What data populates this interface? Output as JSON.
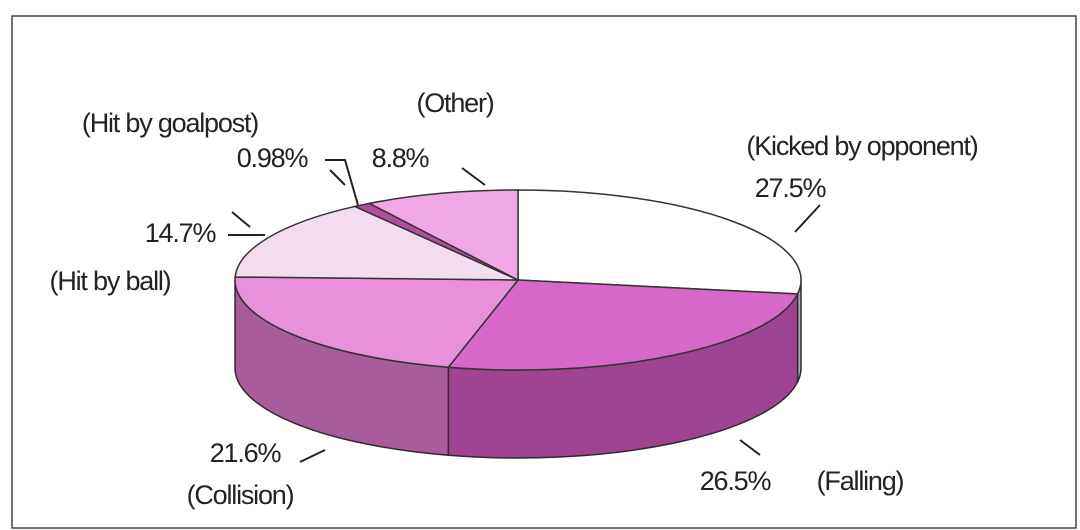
{
  "chart_data": {
    "type": "pie3d",
    "categories": [
      "(Kicked by opponent)",
      "(Falling)",
      "(Collision)",
      "(Hit by ball)",
      "(Hit by goalpost)",
      "(Other)"
    ],
    "values": [
      27.5,
      26.5,
      21.6,
      14.7,
      0.98,
      8.8
    ],
    "value_labels": [
      "27.5%",
      "26.5%",
      "21.6%",
      "14.7%",
      "0.98%",
      "8.8%"
    ],
    "colors": [
      "#ffffff",
      "#d868c8",
      "#e890d8",
      "#f4dcf0",
      "#b0509c",
      "#f0a8e4"
    ]
  }
}
